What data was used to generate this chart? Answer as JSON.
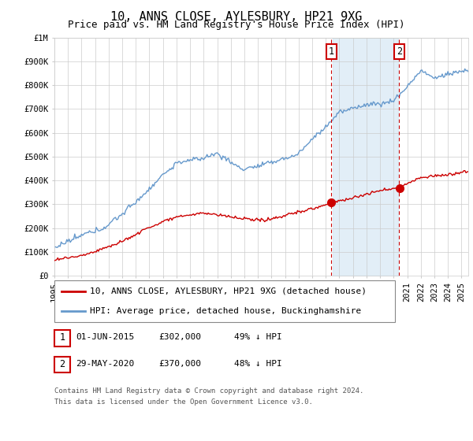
{
  "title": "10, ANNS CLOSE, AYLESBURY, HP21 9XG",
  "subtitle": "Price paid vs. HM Land Registry's House Price Index (HPI)",
  "legend_line1": "10, ANNS CLOSE, AYLESBURY, HP21 9XG (detached house)",
  "legend_line2": "HPI: Average price, detached house, Buckinghamshire",
  "footer1": "Contains HM Land Registry data © Crown copyright and database right 2024.",
  "footer2": "This data is licensed under the Open Government Licence v3.0.",
  "sale1_label": "1",
  "sale1_date": "01-JUN-2015",
  "sale1_price": "£302,000",
  "sale1_hpi": "49% ↓ HPI",
  "sale1_year": 2015.42,
  "sale1_value": 302000,
  "sale2_label": "2",
  "sale2_date": "29-MAY-2020",
  "sale2_price": "£370,000",
  "sale2_hpi": "48% ↓ HPI",
  "sale2_year": 2020.41,
  "sale2_value": 370000,
  "red_color": "#cc0000",
  "blue_color": "#6699cc",
  "blue_fill_color": "#d6e8f5",
  "background_color": "#ffffff",
  "grid_color": "#cccccc",
  "ylim_max": 1000000,
  "title_fontsize": 11,
  "subtitle_fontsize": 9,
  "axis_label_fontsize": 7.5,
  "legend_fontsize": 8,
  "footer_fontsize": 6.5
}
